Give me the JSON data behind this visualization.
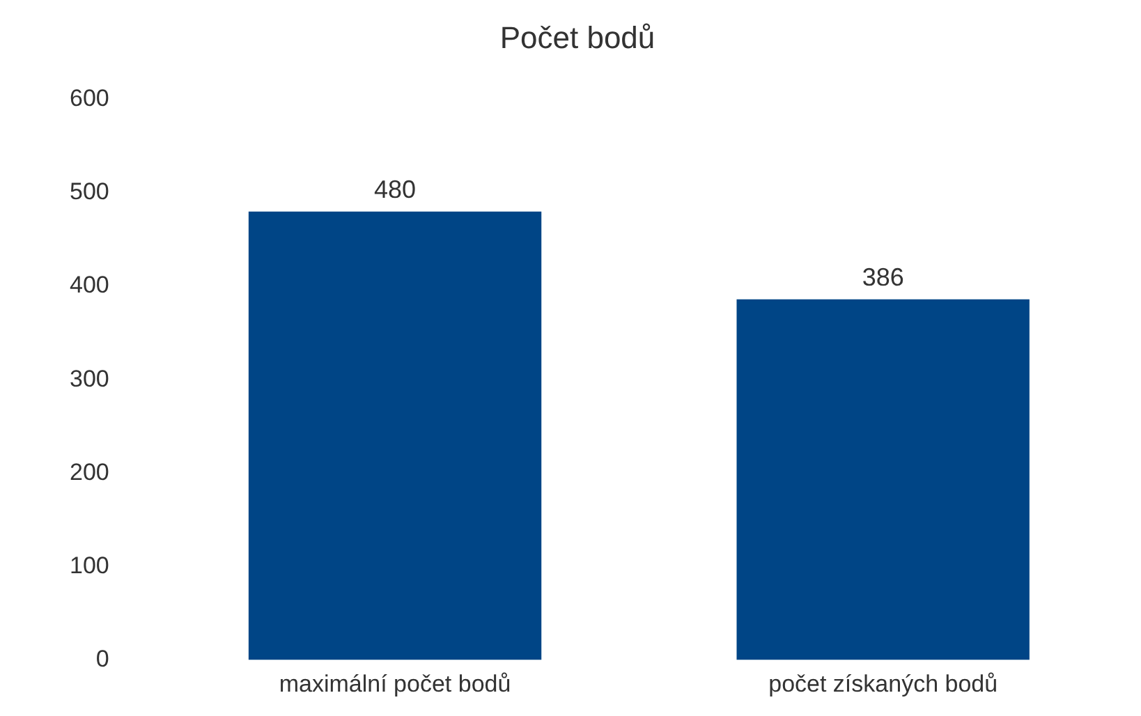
{
  "chart_data": {
    "type": "bar",
    "title": "Počet bodů",
    "categories": [
      "maximální počet bodů",
      "počet získaných bodů"
    ],
    "values": [
      480,
      386
    ],
    "color": "#004586",
    "ylim": [
      0,
      600
    ],
    "yticks": [
      0,
      100,
      200,
      300,
      400,
      500,
      600
    ],
    "grid": false,
    "legend": false,
    "data_labels": true
  }
}
